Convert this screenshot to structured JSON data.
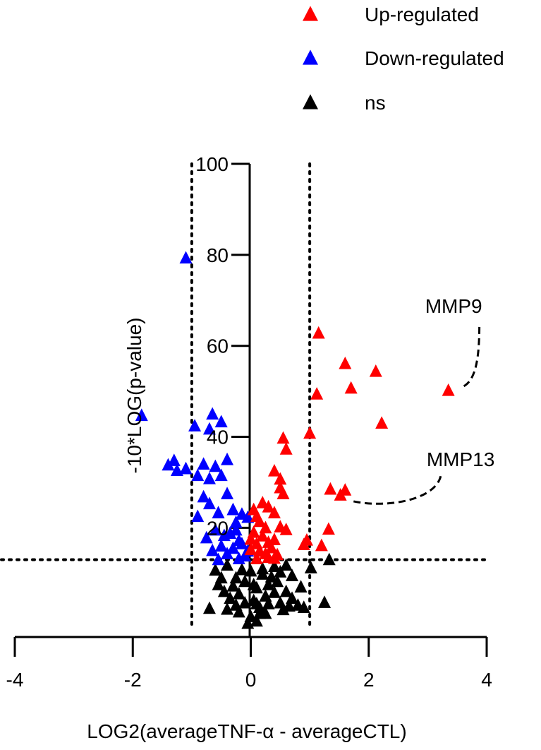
{
  "chart_data": {
    "type": "scatter",
    "title": "",
    "xlabel": "LOG2(averageTNF-α - averageCTL)",
    "ylabel": "-10*LOG(p-value)",
    "xlim": [
      -4,
      4
    ],
    "ylim": [
      -4,
      100
    ],
    "x_ticks": [
      "-4",
      "-2",
      "0",
      "2",
      "4"
    ],
    "y_ticks": [
      "20",
      "40",
      "60",
      "80",
      "100"
    ],
    "thresholds": {
      "x": [
        -1,
        1
      ],
      "y": 13
    },
    "legend_position": "top-right",
    "marker": "triangle",
    "series": [
      {
        "name": "Up-regulated",
        "color": "#ff0000",
        "points": [
          [
            1.15,
            62.8
          ],
          [
            1.6,
            56.1
          ],
          [
            2.12,
            54.4
          ],
          [
            1.7,
            50.7
          ],
          [
            1.12,
            49.4
          ],
          [
            3.35,
            50.2
          ],
          [
            2.22,
            43.0
          ],
          [
            1.0,
            40.8
          ],
          [
            0.55,
            39.7
          ],
          [
            0.6,
            37.3
          ],
          [
            0.4,
            32.5
          ],
          [
            0.5,
            30.7
          ],
          [
            0.5,
            28.8
          ],
          [
            0.55,
            27.5
          ],
          [
            1.35,
            28.5
          ],
          [
            1.6,
            28.3
          ],
          [
            1.52,
            27.2
          ],
          [
            0.2,
            25.5
          ],
          [
            0.3,
            24.6
          ],
          [
            0.05,
            24.0
          ],
          [
            0.1,
            22.5
          ],
          [
            0.15,
            21.4
          ],
          [
            0.25,
            20.0
          ],
          [
            0.4,
            23.3
          ],
          [
            0.5,
            20.2
          ],
          [
            0.6,
            19.6
          ],
          [
            1.32,
            19.7
          ],
          [
            0.95,
            17.3
          ],
          [
            0.05,
            19.0
          ],
          [
            0.2,
            18.2
          ],
          [
            0.1,
            16.5
          ],
          [
            0.3,
            16.8
          ],
          [
            0.0,
            15.2
          ],
          [
            0.15,
            14.9
          ],
          [
            0.25,
            14.3
          ],
          [
            0.35,
            15.6
          ],
          [
            0.45,
            14.1
          ],
          [
            1.2,
            16.1
          ],
          [
            0.0,
            17.5
          ],
          [
            0.3,
            13.5
          ],
          [
            0.1,
            13.2
          ],
          [
            0.4,
            13.3
          ],
          [
            0.9,
            16.3
          ],
          [
            0.4,
            17.4
          ]
        ]
      },
      {
        "name": "Down-regulated",
        "color": "#0000ff",
        "points": [
          [
            -1.1,
            79.3
          ],
          [
            -1.85,
            44.7
          ],
          [
            -0.65,
            45.0
          ],
          [
            -0.5,
            43.3
          ],
          [
            -0.95,
            42.4
          ],
          [
            -0.7,
            41.7
          ],
          [
            -1.4,
            33.8
          ],
          [
            -1.3,
            34.8
          ],
          [
            -1.25,
            32.6
          ],
          [
            -1.1,
            33.0
          ],
          [
            -0.8,
            34.0
          ],
          [
            -0.6,
            33.5
          ],
          [
            -0.4,
            35.0
          ],
          [
            -0.9,
            31.5
          ],
          [
            -0.7,
            30.8
          ],
          [
            -0.5,
            31.5
          ],
          [
            -0.8,
            26.8
          ],
          [
            -0.4,
            27.5
          ],
          [
            -0.7,
            25.3
          ],
          [
            -0.9,
            22.5
          ],
          [
            -0.55,
            23.3
          ],
          [
            -0.3,
            24.0
          ],
          [
            -0.15,
            23.0
          ],
          [
            -0.05,
            22.3
          ],
          [
            -0.25,
            21.2
          ],
          [
            -0.6,
            19.5
          ],
          [
            -0.75,
            17.8
          ],
          [
            -0.45,
            18.3
          ],
          [
            -0.2,
            17.2
          ],
          [
            -0.5,
            16.0
          ],
          [
            -0.3,
            15.5
          ],
          [
            -0.4,
            14.3
          ],
          [
            -0.1,
            13.8
          ],
          [
            -0.2,
            13.2
          ],
          [
            -0.55,
            13.0
          ],
          [
            -0.65,
            15.0
          ],
          [
            -0.15,
            16.5
          ],
          [
            -0.05,
            14.9
          ],
          [
            -0.35,
            18.8
          ],
          [
            -0.25,
            19.5
          ]
        ]
      },
      {
        "name": "ns",
        "color": "#000000",
        "points": [
          [
            1.33,
            13.0
          ],
          [
            1.02,
            11.2
          ],
          [
            0.6,
            11.8
          ],
          [
            0.5,
            10.3
          ],
          [
            -0.4,
            11.8
          ],
          [
            -0.6,
            10.7
          ],
          [
            -0.5,
            9.0
          ],
          [
            -0.45,
            6.0
          ],
          [
            -0.7,
            2.3
          ],
          [
            -0.4,
            2.1
          ],
          [
            -0.25,
            3.0
          ],
          [
            0.8,
            3.0
          ],
          [
            0.9,
            2.5
          ],
          [
            1.25,
            3.6
          ],
          [
            0.4,
            5.8
          ],
          [
            0.5,
            3.5
          ],
          [
            0.15,
            1.2
          ],
          [
            0.2,
            9.8
          ],
          [
            0.0,
            10.5
          ],
          [
            0.3,
            7.5
          ],
          [
            0.1,
            6.8
          ],
          [
            -0.1,
            8.2
          ],
          [
            -0.2,
            5.5
          ],
          [
            0.05,
            4.0
          ],
          [
            0.3,
            3.3
          ],
          [
            0.0,
            0.5
          ],
          [
            -0.05,
            -1.0
          ],
          [
            0.1,
            -0.5
          ],
          [
            0.25,
            1.2
          ],
          [
            -0.2,
            1.5
          ],
          [
            0.35,
            9.2
          ],
          [
            -0.3,
            7.2
          ],
          [
            0.45,
            8.2
          ],
          [
            0.6,
            6.0
          ],
          [
            0.7,
            4.5
          ],
          [
            0.55,
            2.0
          ],
          [
            -0.1,
            3.5
          ],
          [
            0.15,
            2.5
          ],
          [
            -0.35,
            4.5
          ],
          [
            0.05,
            7.5
          ],
          [
            0.2,
            11.0
          ],
          [
            -0.15,
            10.8
          ],
          [
            0.4,
            11.5
          ],
          [
            0.7,
            9.5
          ],
          [
            -0.55,
            7.5
          ],
          [
            0.85,
            7.0
          ],
          [
            0.65,
            2.8
          ],
          [
            -0.25,
            9.0
          ],
          [
            0.25,
            5.0
          ],
          [
            0.1,
            3.3
          ]
        ]
      }
    ],
    "annotations": [
      {
        "label": "MMP9",
        "x": 3.35,
        "y": 50.2
      },
      {
        "label": "MMP13",
        "x": 1.6,
        "y": 28.3
      }
    ]
  }
}
